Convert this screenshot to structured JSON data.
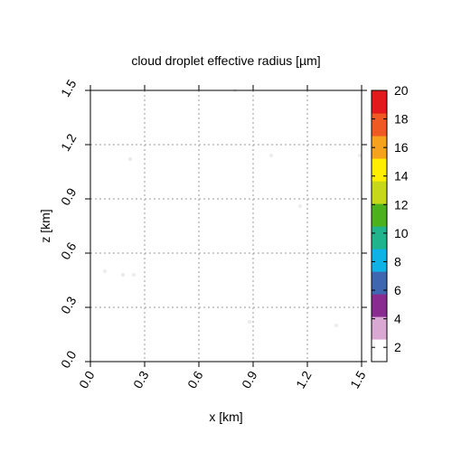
{
  "chart_data": {
    "type": "heatmap",
    "title": "cloud droplet effective radius [µm]",
    "xlabel": "x [km]",
    "ylabel": "z [km]",
    "xlim": [
      0,
      1.5
    ],
    "ylim": [
      0,
      1.5
    ],
    "xticks": [
      "0.0",
      "0.3",
      "0.6",
      "0.9",
      "1.2",
      "1.5"
    ],
    "yticks": [
      "0.0",
      "0.3",
      "0.6",
      "0.9",
      "1.2",
      "1.5"
    ],
    "grid": true,
    "colorbar": {
      "range": [
        1,
        20
      ],
      "ticks": [
        "2",
        "4",
        "6",
        "8",
        "10",
        "12",
        "14",
        "16",
        "18",
        "20"
      ],
      "colors": [
        "#ffffff",
        "#d9a9d4",
        "#8a2b8f",
        "#3f66b1",
        "#0fb2e6",
        "#1fb48c",
        "#4cb21c",
        "#c7d81a",
        "#ffee00",
        "#f6a21f",
        "#ee5a22",
        "#e31a1c"
      ]
    },
    "points": [
      {
        "x": 0.08,
        "y": 0.5,
        "value": 1
      },
      {
        "x": 0.18,
        "y": 0.48,
        "value": 1
      },
      {
        "x": 0.24,
        "y": 0.48,
        "value": 1
      },
      {
        "x": 0.22,
        "y": 1.12,
        "value": 1
      },
      {
        "x": 0.8,
        "y": 1.5,
        "value": 1
      },
      {
        "x": 0.88,
        "y": 0.22,
        "value": 1
      },
      {
        "x": 1.0,
        "y": 1.14,
        "value": 1
      },
      {
        "x": 1.16,
        "y": 0.86,
        "value": 1
      },
      {
        "x": 1.36,
        "y": 0.2,
        "value": 1
      },
      {
        "x": 1.49,
        "y": 1.14,
        "value": 1
      }
    ]
  }
}
